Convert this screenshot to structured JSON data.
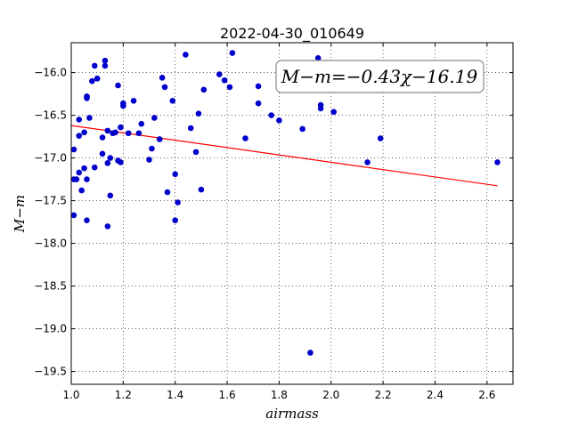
{
  "chart_data": {
    "type": "scatter",
    "title": "2022-04-30_010649",
    "xlabel": "airmass",
    "ylabel": "M−m",
    "xlim": [
      1.0,
      2.7
    ],
    "ylim": [
      -19.65,
      -15.65
    ],
    "y_inverted": true,
    "grid": true,
    "x_ticks": [
      1.0,
      1.2,
      1.4,
      1.6,
      1.8,
      2.0,
      2.2,
      2.4,
      2.6
    ],
    "x_tick_labels": [
      "1.0",
      "1.2",
      "1.4",
      "1.6",
      "1.8",
      "2.0",
      "2.2",
      "2.4",
      "2.6"
    ],
    "y_ticks": [
      -16.0,
      -16.5,
      -17.0,
      -17.5,
      -18.0,
      -18.5,
      -19.0,
      -19.5
    ],
    "y_tick_labels": [
      "−16.0",
      "−16.5",
      "−17.0",
      "−17.5",
      "−18.0",
      "−18.5",
      "−19.0",
      "−19.5"
    ],
    "annotation": "M−m=−0.43χ−16.19",
    "point_color": "#0000cc",
    "fit_color": "#ff0000",
    "fit": {
      "slope": -0.43,
      "intercept": -16.19,
      "x_range": [
        1.0,
        2.64
      ]
    },
    "series": [
      {
        "x": [
          1.01,
          1.02,
          1.01,
          1.01,
          1.03,
          1.03,
          1.04,
          1.03,
          1.05,
          1.05,
          1.06,
          1.06,
          1.06,
          1.06,
          1.06,
          1.07,
          1.08,
          1.09,
          1.09,
          1.1,
          1.1,
          1.12,
          1.12,
          1.13,
          1.13,
          1.14,
          1.14,
          1.14,
          1.15,
          1.15,
          1.16,
          1.17,
          1.18,
          1.18,
          1.19,
          1.19,
          1.2,
          1.2,
          1.22,
          1.24,
          1.26,
          1.27,
          1.3,
          1.31,
          1.32,
          1.34,
          1.35,
          1.36,
          1.37,
          1.39,
          1.4,
          1.4,
          1.41,
          1.44,
          1.46,
          1.48,
          1.49,
          1.5,
          1.51,
          1.57,
          1.59,
          1.61,
          1.62,
          1.67,
          1.72,
          1.72,
          1.77,
          1.8,
          1.89,
          1.92,
          1.95,
          1.96,
          1.96,
          2.01,
          2.14,
          2.19,
          2.64
        ],
        "y": [
          -16.9,
          -17.25,
          -17.67,
          -17.25,
          -16.55,
          -16.74,
          -17.38,
          -17.17,
          -16.7,
          -17.12,
          -16.3,
          -16.28,
          -16.28,
          -17.25,
          -17.73,
          -16.53,
          -16.1,
          -15.92,
          -17.11,
          -16.07,
          -16.07,
          -16.76,
          -16.95,
          -15.86,
          -15.92,
          -17.8,
          -16.68,
          -17.06,
          -17.44,
          -17.0,
          -16.71,
          -16.7,
          -16.15,
          -17.03,
          -16.64,
          -17.05,
          -16.36,
          -16.39,
          -16.71,
          -16.33,
          -16.71,
          -16.6,
          -17.02,
          -16.89,
          -16.53,
          -16.78,
          -16.06,
          -16.17,
          -17.4,
          -16.33,
          -17.19,
          -17.73,
          -17.52,
          -15.79,
          -16.65,
          -16.93,
          -16.48,
          -17.37,
          -16.2,
          -16.02,
          -16.09,
          -16.17,
          -15.77,
          -16.77,
          -16.16,
          -16.36,
          -16.5,
          -16.56,
          -16.66,
          -19.28,
          -15.83,
          -16.38,
          -16.42,
          -16.46,
          -17.05,
          -16.77,
          -17.05
        ]
      }
    ]
  }
}
